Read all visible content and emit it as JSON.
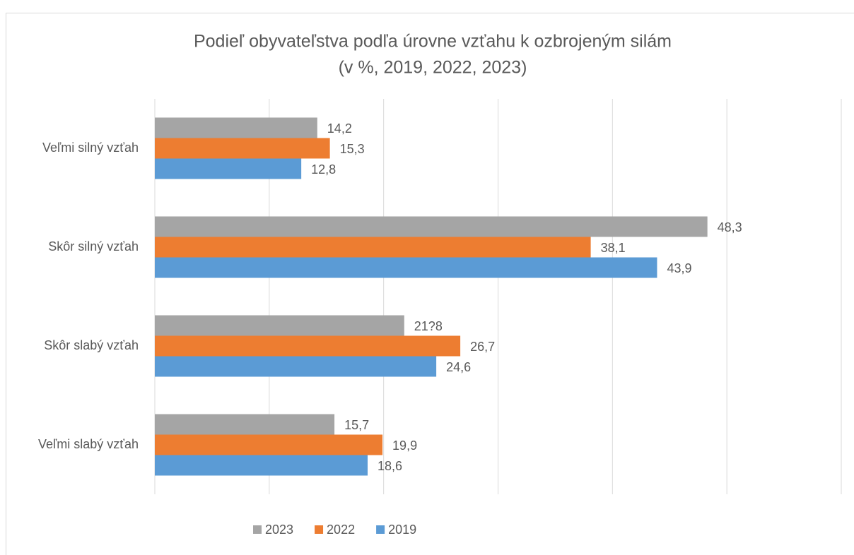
{
  "chart_data": {
    "type": "bar",
    "orientation": "horizontal",
    "title": "Podieľ obyvateľstva podľa úrovne vzťahu k ozbrojeným silám",
    "subtitle": "(v %, 2019, 2022, 2023)",
    "categories": [
      "Veľmi silný vzťah",
      "Skôr silný vzťah",
      "Skôr slabý vzťah",
      "Veľmi slabý vzťah"
    ],
    "series": [
      {
        "name": "2023",
        "color": "#a5a5a5",
        "values": [
          14.2,
          48.3,
          21.8,
          15.7
        ],
        "value_labels": [
          "14,2",
          "48,3",
          "21?8",
          "15,7"
        ]
      },
      {
        "name": "2022",
        "color": "#ed7d31",
        "values": [
          15.3,
          38.1,
          26.7,
          19.9
        ],
        "value_labels": [
          "15,3",
          "38,1",
          "26,7",
          "19,9"
        ]
      },
      {
        "name": "2019",
        "color": "#5b9bd5",
        "values": [
          12.8,
          43.9,
          24.6,
          18.6
        ],
        "value_labels": [
          "12,8",
          "43,9",
          "24,6",
          "18,6"
        ]
      }
    ],
    "xlim": [
      0,
      60
    ],
    "xticks": [
      0,
      10,
      20,
      30,
      40,
      50,
      60
    ],
    "grid": true,
    "legend": "bottom"
  }
}
